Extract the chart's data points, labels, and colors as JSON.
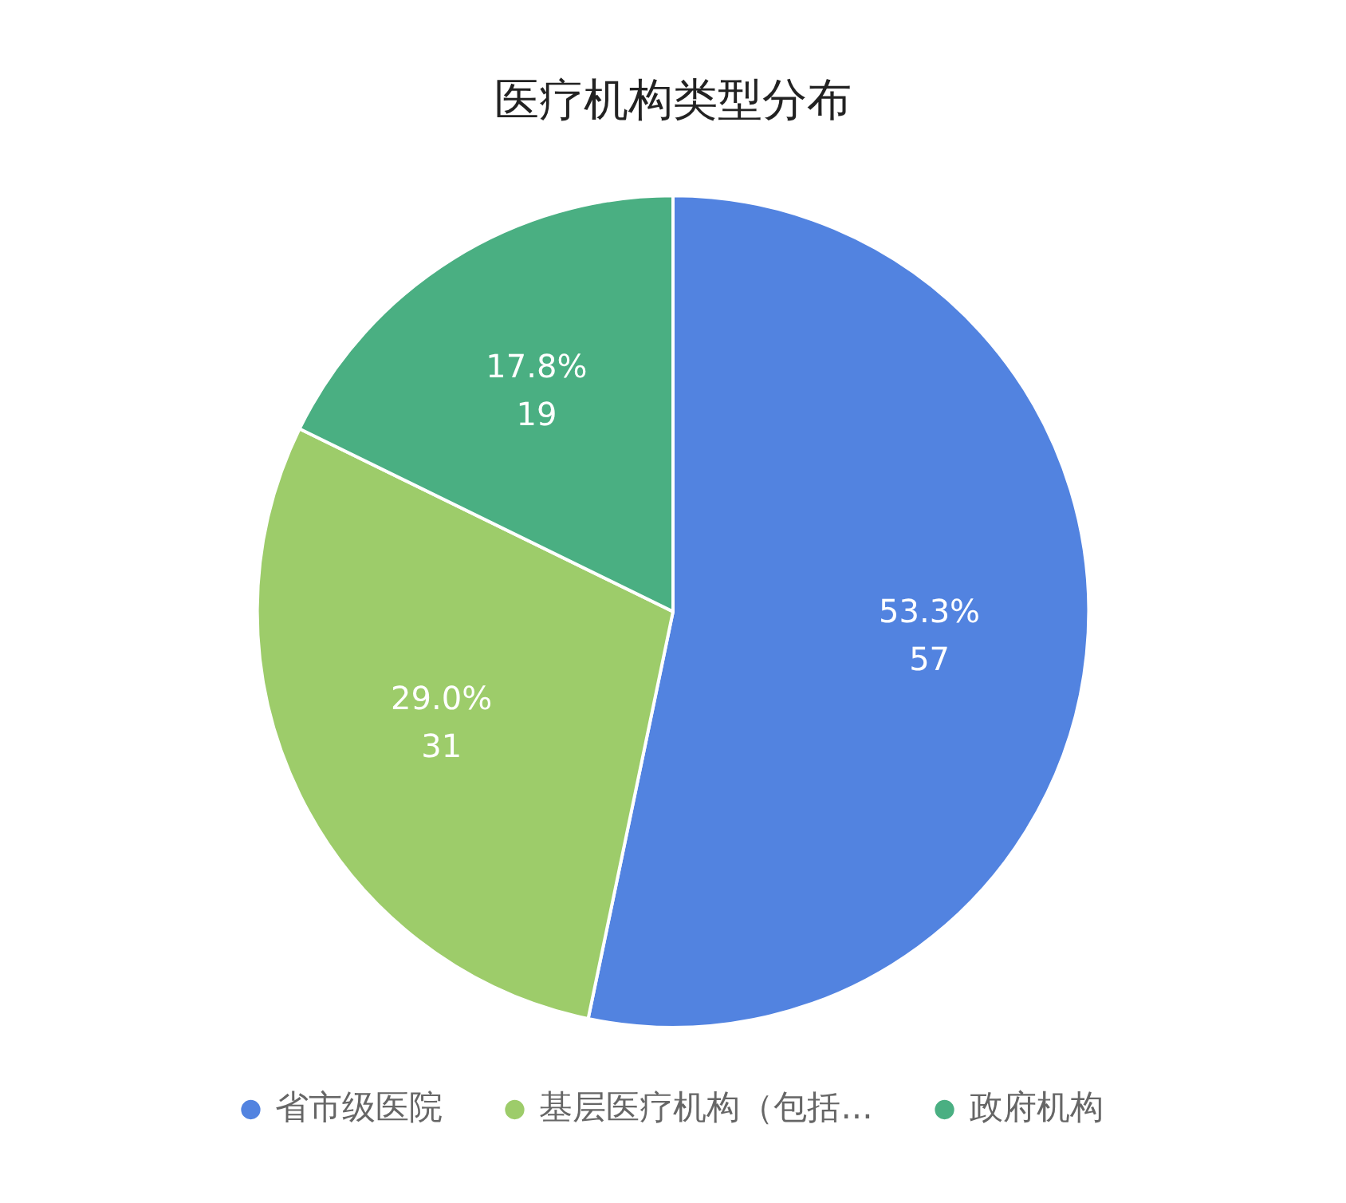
{
  "chart_data": {
    "type": "pie",
    "title": "医疗机构类型分布",
    "categories": [
      "省市级医院",
      "基层医疗机构（包括...",
      "政府机构"
    ],
    "values": [
      57,
      31,
      19
    ],
    "colors": [
      "#5283e0",
      "#9dcc6a",
      "#4aaf82"
    ],
    "value_labels": [
      "53.3%\n57",
      "29.0%\n31",
      "17.8%\n19"
    ],
    "legend": "bottom"
  }
}
